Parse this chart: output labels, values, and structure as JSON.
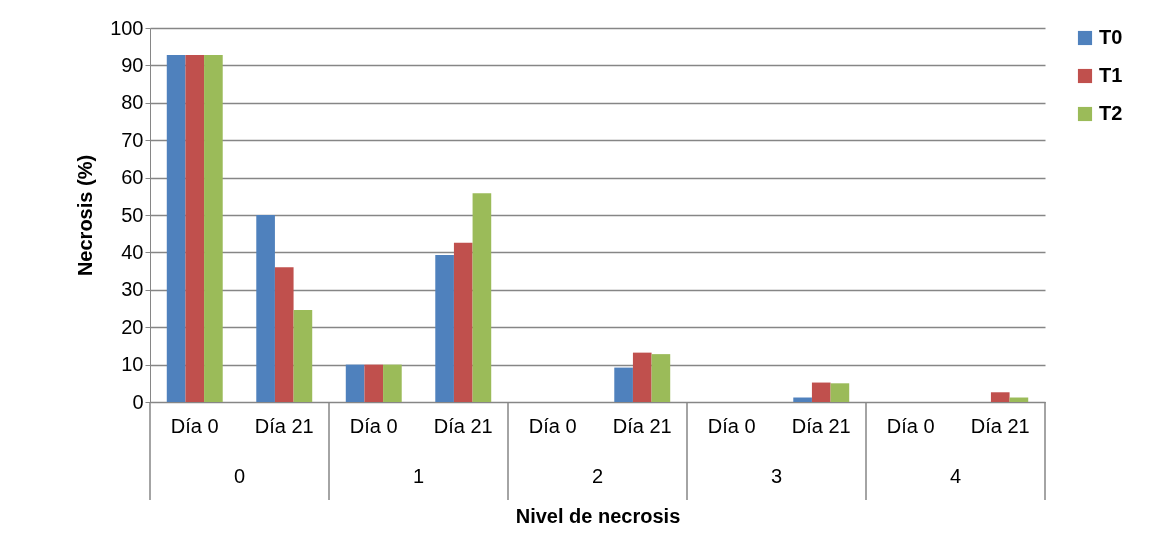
{
  "chart_data": {
    "type": "bar",
    "xlabel": "Nivel de necrosis",
    "ylabel": "Necrosis (%)",
    "categories": [
      "Día 0",
      "Día 21",
      "Día 0",
      "Día 21",
      "Día 0",
      "Día 21",
      "Día 0",
      "Día 21",
      "Día 0",
      "Día 21"
    ],
    "series": [
      {
        "name": "T0",
        "color": "#4f81bd",
        "values": [
          92.8,
          50,
          10,
          39.3,
          0,
          9.2,
          0,
          1.2,
          0,
          0
        ]
      },
      {
        "name": "T1",
        "color": "#c0504d",
        "values": [
          92.8,
          36,
          10,
          42.6,
          0,
          13.2,
          0,
          5.2,
          0,
          2.6
        ]
      },
      {
        "name": "T2",
        "color": "#9bbb59",
        "values": [
          92.8,
          24.6,
          10,
          55.8,
          0,
          12.8,
          0,
          5.0,
          0,
          1.2
        ]
      }
    ],
    "annotations": [
      "0",
      "1",
      "2",
      "3",
      "4"
    ],
    "ylim": [
      0,
      100
    ],
    "yticks": [
      0,
      10,
      20,
      30,
      40,
      50,
      60,
      70,
      80,
      90,
      100
    ],
    "grid": "y",
    "legend": "right"
  }
}
